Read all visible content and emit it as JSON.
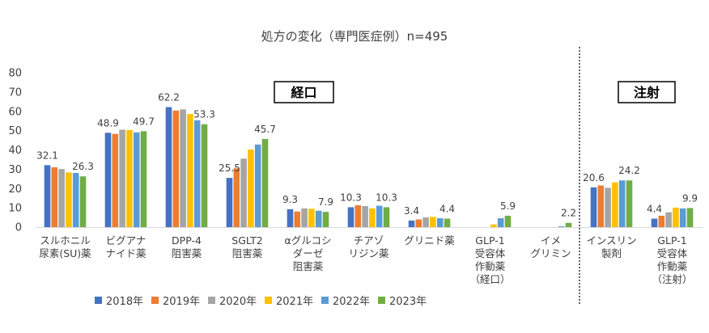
{
  "chart_data": {
    "type": "bar",
    "title": "処方の変化（専門医症例）n=495",
    "categories": [
      [
        "スルホニル",
        "尿素(SU)薬"
      ],
      [
        "ビグアナ",
        "ナイド薬"
      ],
      [
        "DPP-4",
        "阻害薬"
      ],
      [
        "SGLT2",
        "阻害薬"
      ],
      [
        "αグルコシ",
        "ダーゼ",
        "阻害薬"
      ],
      [
        "チアゾ",
        "リジン薬"
      ],
      [
        "グリニド薬"
      ],
      [
        "GLP-1",
        "受容体",
        "作動薬",
        "（経口）"
      ],
      [
        "イメ",
        "グリミン"
      ],
      [
        "インスリン",
        "製剤"
      ],
      [
        "GLP-1",
        "受容体",
        "作動薬",
        "（注射）"
      ]
    ],
    "series": [
      {
        "name": "2018年",
        "color": "#4472C4",
        "values": [
          32.1,
          48.9,
          62.2,
          25.5,
          9.3,
          10.3,
          3.4,
          0,
          0,
          20.6,
          4.4
        ]
      },
      {
        "name": "2019年",
        "color": "#ED7D31",
        "values": [
          31.0,
          48.3,
          60.4,
          30.5,
          8.1,
          11.3,
          4.0,
          0,
          0,
          21.6,
          5.9
        ]
      },
      {
        "name": "2020年",
        "color": "#A5A5A5",
        "values": [
          30.1,
          50.5,
          61.0,
          35.5,
          9.7,
          10.9,
          5.0,
          0,
          0,
          20.4,
          7.7
        ]
      },
      {
        "name": "2021年",
        "color": "#FFC000",
        "values": [
          28.3,
          50.3,
          58.6,
          40.2,
          9.5,
          9.7,
          5.3,
          1.4,
          0,
          23.2,
          10.1
        ]
      },
      {
        "name": "2022年",
        "color": "#5B9BD5",
        "values": [
          28.1,
          49.1,
          55.4,
          42.8,
          8.5,
          11.1,
          4.6,
          4.6,
          0.4,
          24.2,
          9.7
        ]
      },
      {
        "name": "2023年",
        "color": "#70AD47",
        "values": [
          26.3,
          49.7,
          53.3,
          45.7,
          7.9,
          10.3,
          4.4,
          5.9,
          2.2,
          24.2,
          9.9
        ]
      }
    ],
    "data_labels": [
      {
        "category": 0,
        "series": 0,
        "text": "32.1"
      },
      {
        "category": 0,
        "series": 5,
        "text": "26.3"
      },
      {
        "category": 1,
        "series": 0,
        "text": "48.9"
      },
      {
        "category": 1,
        "series": 5,
        "text": "49.7"
      },
      {
        "category": 2,
        "series": 0,
        "text": "62.2"
      },
      {
        "category": 2,
        "series": 5,
        "text": "53.3"
      },
      {
        "category": 3,
        "series": 0,
        "text": "25.5"
      },
      {
        "category": 3,
        "series": 5,
        "text": "45.7"
      },
      {
        "category": 4,
        "series": 0,
        "text": "9.3"
      },
      {
        "category": 4,
        "series": 5,
        "text": "7.9"
      },
      {
        "category": 5,
        "series": 0,
        "text": "10.3"
      },
      {
        "category": 5,
        "series": 5,
        "text": "10.3"
      },
      {
        "category": 6,
        "series": 0,
        "text": "3.4"
      },
      {
        "category": 6,
        "series": 5,
        "text": "4.4"
      },
      {
        "category": 7,
        "series": 5,
        "text": "5.9"
      },
      {
        "category": 8,
        "series": 5,
        "text": "2.2"
      },
      {
        "category": 9,
        "series": 0,
        "text": "20.6"
      },
      {
        "category": 9,
        "series": 5,
        "text": "24.2"
      },
      {
        "category": 10,
        "series": 0,
        "text": "4.4"
      },
      {
        "category": 10,
        "series": 5,
        "text": "9.9"
      }
    ],
    "ylim": [
      0,
      80
    ],
    "yticks": [
      0,
      10,
      20,
      30,
      40,
      50,
      60,
      70,
      80
    ],
    "grid": false,
    "legend_position": "bottom",
    "annotations": [
      {
        "text": "経口",
        "group": "oral"
      },
      {
        "text": "注射",
        "group": "injection"
      }
    ]
  }
}
